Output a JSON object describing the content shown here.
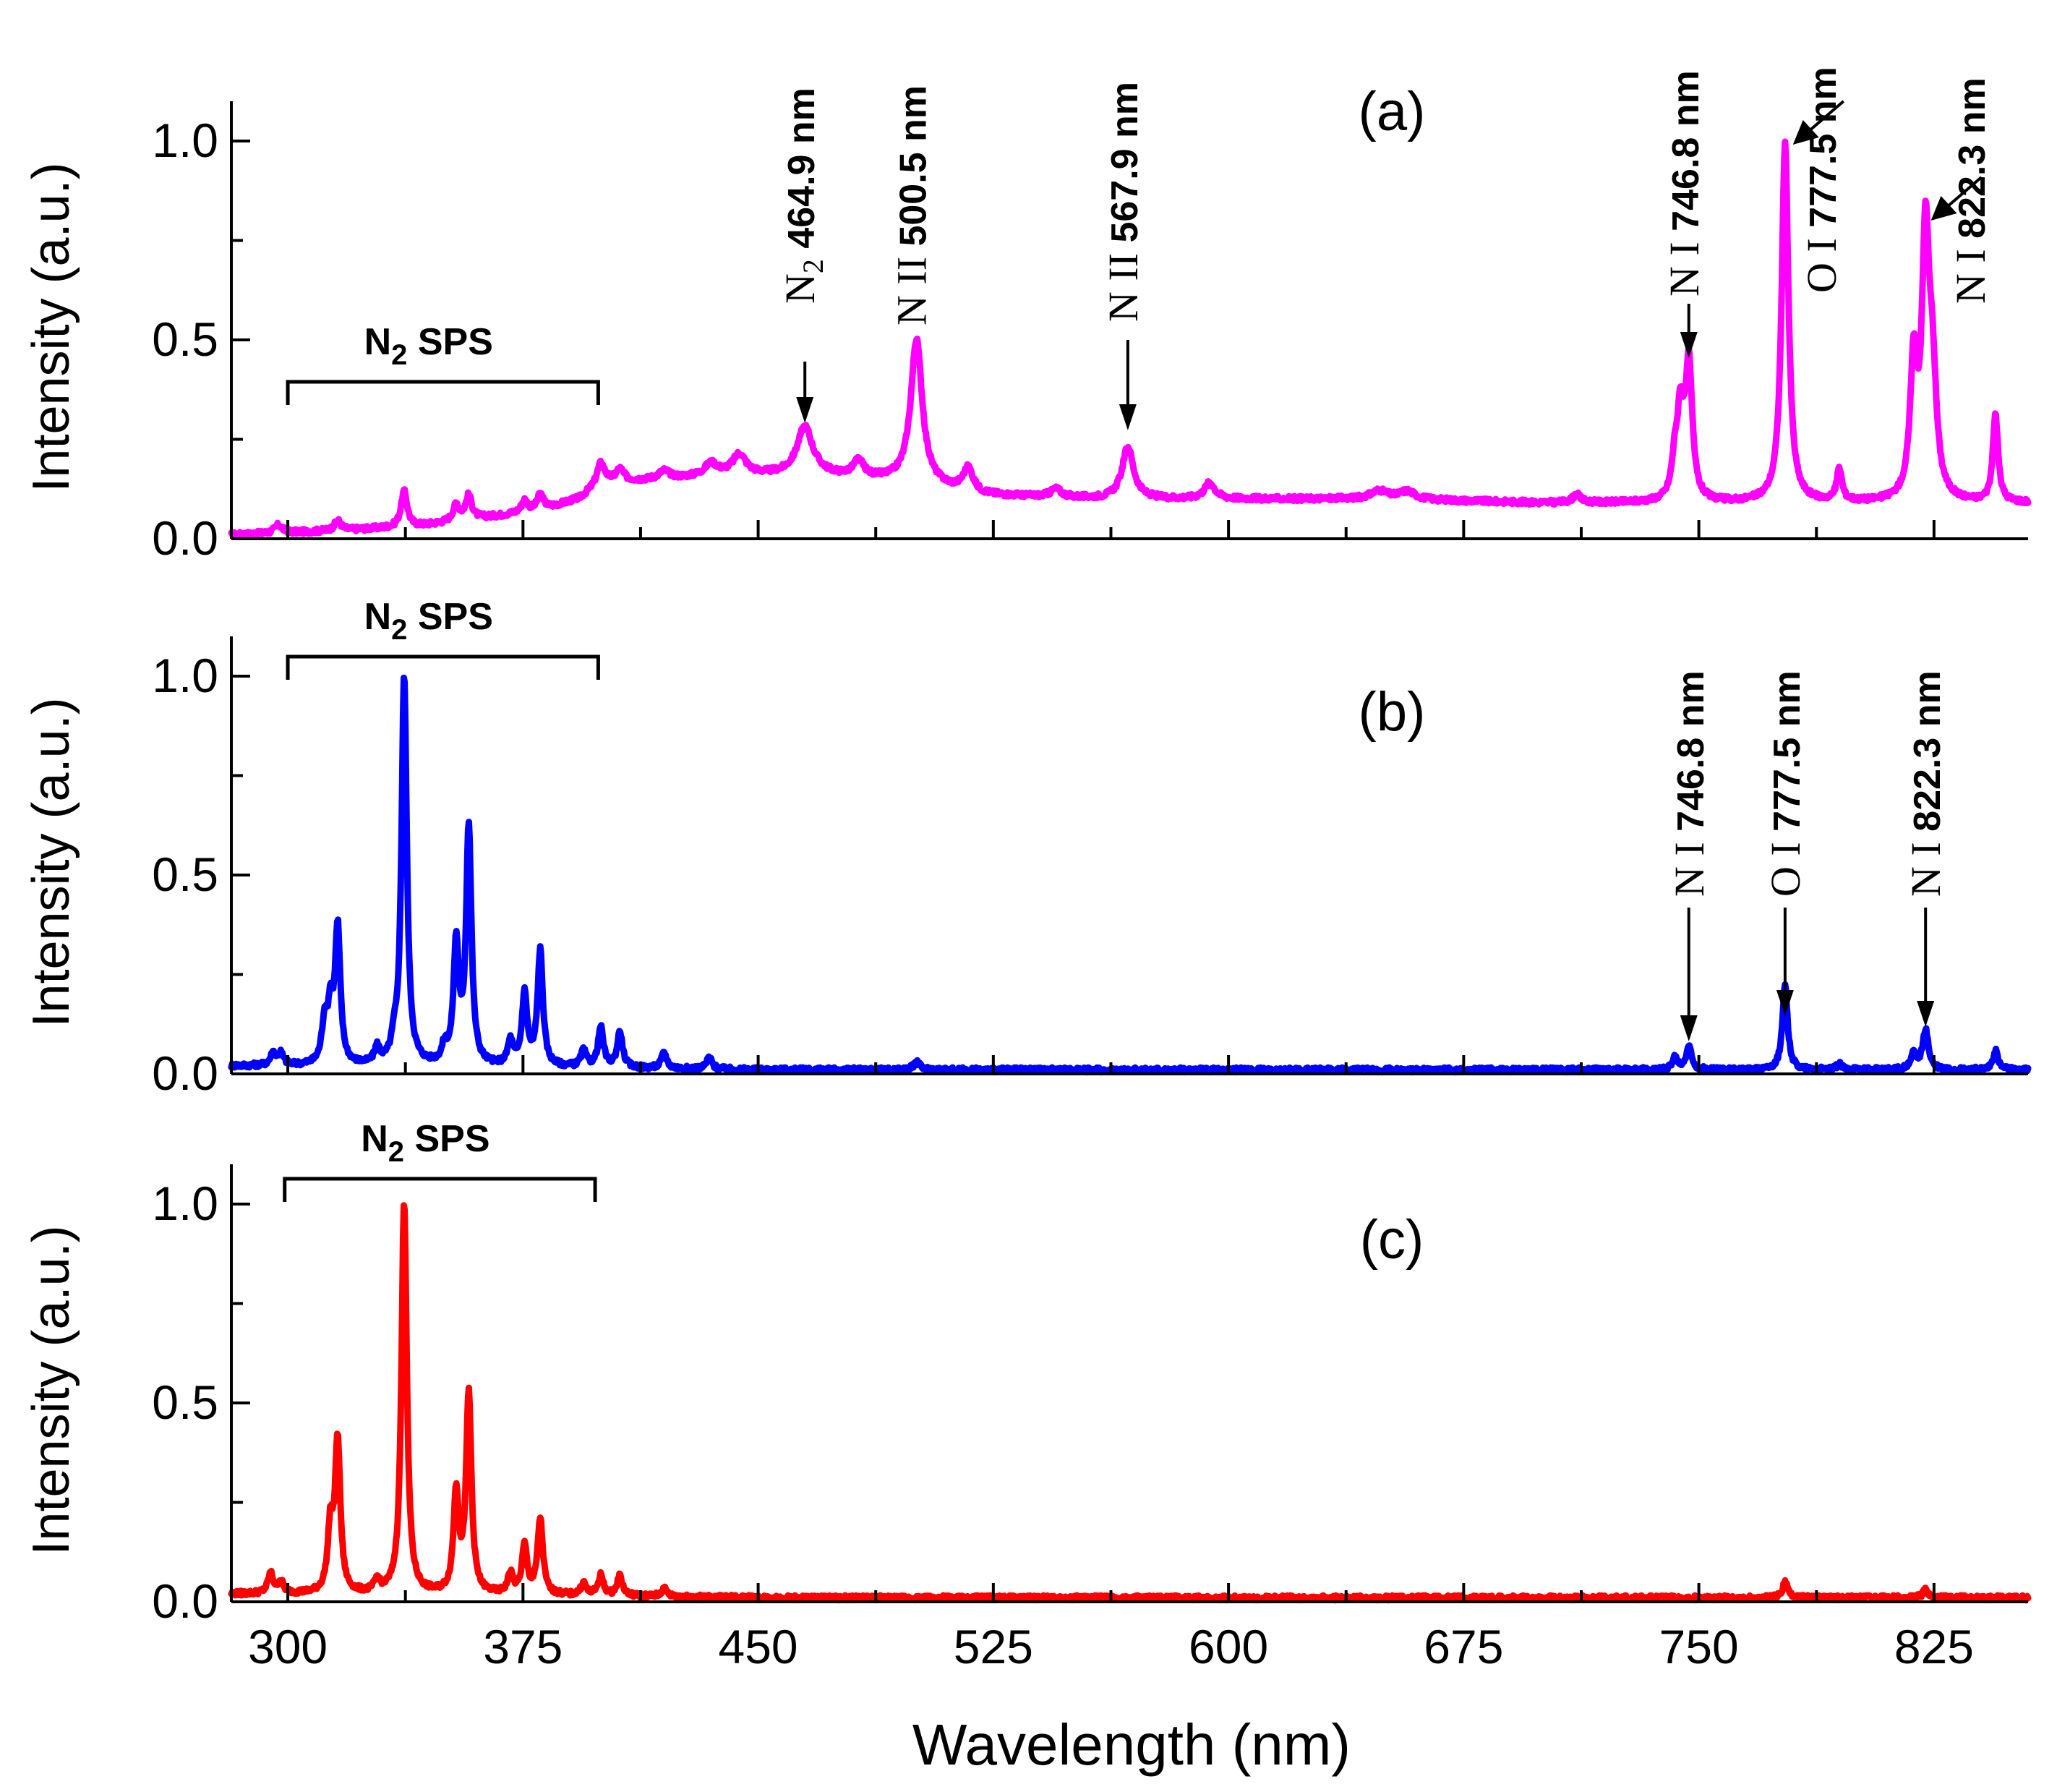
{
  "chart_data": [
    {
      "type": "line",
      "panel_label": "(a)",
      "color": "#ff00ff",
      "xlabel": "Wavelength (nm)",
      "ylabel": "Intensity (a.u.)",
      "xlim": [
        282,
        855
      ],
      "ylim": [
        0.0,
        1.1
      ],
      "xticks": [
        300,
        375,
        450,
        525,
        600,
        675,
        750,
        825
      ],
      "yticks": [
        0.0,
        0.5,
        1.0
      ],
      "ytick_labels": [
        "0.0",
        "0.5",
        "1.0"
      ],
      "baseline": [
        [
          282,
          0.01
        ],
        [
          300,
          0.015
        ],
        [
          340,
          0.03
        ],
        [
          380,
          0.07
        ],
        [
          393,
          0.1
        ],
        [
          400,
          0.14
        ],
        [
          440,
          0.16
        ],
        [
          470,
          0.16
        ],
        [
          500,
          0.14
        ],
        [
          520,
          0.11
        ],
        [
          560,
          0.1
        ],
        [
          600,
          0.1
        ],
        [
          650,
          0.1
        ],
        [
          700,
          0.09
        ],
        [
          740,
          0.09
        ],
        [
          760,
          0.09
        ],
        [
          800,
          0.09
        ],
        [
          855,
          0.09
        ]
      ],
      "peaks": [
        {
          "x": 297,
          "h": 0.02,
          "w": 1.5
        },
        {
          "x": 315.9,
          "h": 0.025,
          "w": 1.2
        },
        {
          "x": 337.1,
          "h": 0.09,
          "w": 1.2
        },
        {
          "x": 353.7,
          "h": 0.04,
          "w": 1.2
        },
        {
          "x": 357.7,
          "h": 0.06,
          "w": 1.2
        },
        {
          "x": 375.5,
          "h": 0.03,
          "w": 1.2
        },
        {
          "x": 380.5,
          "h": 0.04,
          "w": 1.2
        },
        {
          "x": 399.8,
          "h": 0.05,
          "w": 1.5
        },
        {
          "x": 405.9,
          "h": 0.03,
          "w": 1.5
        },
        {
          "x": 420,
          "h": 0.02,
          "w": 2
        },
        {
          "x": 435,
          "h": 0.03,
          "w": 2.5
        },
        {
          "x": 444,
          "h": 0.05,
          "w": 2.5
        },
        {
          "x": 464.9,
          "h": 0.12,
          "w": 3
        },
        {
          "x": 482,
          "h": 0.04,
          "w": 2
        },
        {
          "x": 500.5,
          "h": 0.36,
          "w": 2.2
        },
        {
          "x": 517,
          "h": 0.06,
          "w": 2
        },
        {
          "x": 545,
          "h": 0.02,
          "w": 2
        },
        {
          "x": 567.9,
          "h": 0.13,
          "w": 2.2
        },
        {
          "x": 594,
          "h": 0.04,
          "w": 2
        },
        {
          "x": 648,
          "h": 0.02,
          "w": 3
        },
        {
          "x": 657,
          "h": 0.02,
          "w": 3
        },
        {
          "x": 711,
          "h": 0.02,
          "w": 1.5
        },
        {
          "x": 742.4,
          "h": 0.09,
          "w": 1.2
        },
        {
          "x": 744.2,
          "h": 0.2,
          "w": 1.2
        },
        {
          "x": 746.8,
          "h": 0.34,
          "w": 1.3
        },
        {
          "x": 777.5,
          "h": 0.9,
          "w": 1.3
        },
        {
          "x": 794.8,
          "h": 0.08,
          "w": 1.0
        },
        {
          "x": 818.5,
          "h": 0.33,
          "w": 1.3
        },
        {
          "x": 822.3,
          "h": 0.64,
          "w": 1.4
        },
        {
          "x": 824.5,
          "h": 0.27,
          "w": 1.5
        },
        {
          "x": 844.6,
          "h": 0.22,
          "w": 1.0
        }
      ],
      "bracket": {
        "x1": 300,
        "x2": 399,
        "label": "N",
        "sub": "2",
        "tail": " SPS"
      },
      "annotations": [
        {
          "species": "N",
          "sub": "2",
          "wavelength": "464.9 nm",
          "x": 464.9
        },
        {
          "species": "N II",
          "sub": "",
          "wavelength": "500.5 nm",
          "x": 500.5
        },
        {
          "species": "N II",
          "sub": "",
          "wavelength": "567.9 nm",
          "x": 567.9
        },
        {
          "species": "N I",
          "sub": "",
          "wavelength": "746.8 nm",
          "x": 746.8
        },
        {
          "species": "O I",
          "sub": "",
          "wavelength": "777.5 nm",
          "x": 777.5
        },
        {
          "species": "N I",
          "sub": "",
          "wavelength": "822.3 nm",
          "x": 822.3
        }
      ]
    },
    {
      "type": "line",
      "panel_label": "(b)",
      "color": "#0000ff",
      "xlabel": "Wavelength (nm)",
      "ylabel": "Intensity (a.u.)",
      "xlim": [
        282,
        855
      ],
      "ylim": [
        0.0,
        1.1
      ],
      "xticks": [
        300,
        375,
        450,
        525,
        600,
        675,
        750,
        825
      ],
      "yticks": [
        0.0,
        0.5,
        1.0
      ],
      "ytick_labels": [
        "0.0",
        "0.5",
        "1.0"
      ],
      "baseline": [
        [
          282,
          0.02
        ],
        [
          300,
          0.02
        ],
        [
          400,
          0.015
        ],
        [
          450,
          0.01
        ],
        [
          855,
          0.01
        ]
      ],
      "peaks": [
        {
          "x": 295.3,
          "h": 0.03,
          "w": 1.0
        },
        {
          "x": 297.7,
          "h": 0.03,
          "w": 1.0
        },
        {
          "x": 311.7,
          "h": 0.1,
          "w": 1.0
        },
        {
          "x": 313.6,
          "h": 0.13,
          "w": 1.0
        },
        {
          "x": 315.9,
          "h": 0.34,
          "w": 1.0
        },
        {
          "x": 328.5,
          "h": 0.04,
          "w": 1.0
        },
        {
          "x": 333.9,
          "h": 0.04,
          "w": 1.0
        },
        {
          "x": 337.1,
          "h": 0.98,
          "w": 1.0
        },
        {
          "x": 350,
          "h": 0.04,
          "w": 1.0
        },
        {
          "x": 353.7,
          "h": 0.3,
          "w": 1.0
        },
        {
          "x": 357.7,
          "h": 0.6,
          "w": 1.0
        },
        {
          "x": 371,
          "h": 0.06,
          "w": 1.0
        },
        {
          "x": 375.5,
          "h": 0.18,
          "w": 1.0
        },
        {
          "x": 380.5,
          "h": 0.29,
          "w": 1.0
        },
        {
          "x": 394.3,
          "h": 0.04,
          "w": 1.0
        },
        {
          "x": 399.8,
          "h": 0.1,
          "w": 1.0
        },
        {
          "x": 405.9,
          "h": 0.09,
          "w": 1.0
        },
        {
          "x": 420,
          "h": 0.04,
          "w": 1.0
        },
        {
          "x": 434.4,
          "h": 0.03,
          "w": 1.0
        },
        {
          "x": 500.5,
          "h": 0.02,
          "w": 1.2
        },
        {
          "x": 742.4,
          "h": 0.03,
          "w": 1.0
        },
        {
          "x": 746.8,
          "h": 0.06,
          "w": 1.0
        },
        {
          "x": 777.5,
          "h": 0.21,
          "w": 1.0
        },
        {
          "x": 794.8,
          "h": 0.015,
          "w": 1.0
        },
        {
          "x": 818.5,
          "h": 0.04,
          "w": 1.0
        },
        {
          "x": 822.3,
          "h": 0.1,
          "w": 1.1
        },
        {
          "x": 844.6,
          "h": 0.05,
          "w": 0.9
        }
      ],
      "bracket": {
        "x1": 300,
        "x2": 399,
        "label": "N",
        "sub": "2",
        "tail": " SPS"
      },
      "annotations": [
        {
          "species": "N I",
          "sub": "",
          "wavelength": "746.8 nm",
          "x": 746.8
        },
        {
          "species": "O I",
          "sub": "",
          "wavelength": "777.5 nm",
          "x": 777.5
        },
        {
          "species": "N I",
          "sub": "",
          "wavelength": "822.3 nm",
          "x": 822.3
        }
      ]
    },
    {
      "type": "line",
      "panel_label": "(c)",
      "color": "#ff0000",
      "xlabel": "Wavelength (nm)",
      "ylabel": "Intensity (a.u.)",
      "xlim": [
        282,
        855
      ],
      "ylim": [
        0.0,
        1.1
      ],
      "xticks": [
        300,
        375,
        450,
        525,
        600,
        675,
        750,
        825
      ],
      "xtick_labels": [
        "300",
        "375",
        "450",
        "525",
        "600",
        "675",
        "750",
        "825"
      ],
      "yticks": [
        0.0,
        0.5,
        1.0
      ],
      "ytick_labels": [
        "0.0",
        "0.5",
        "1.0"
      ],
      "baseline": [
        [
          282,
          0.02
        ],
        [
          300,
          0.02
        ],
        [
          400,
          0.015
        ],
        [
          450,
          0.01
        ],
        [
          855,
          0.01
        ]
      ],
      "peaks": [
        {
          "x": 294.5,
          "h": 0.05,
          "w": 1.0
        },
        {
          "x": 297.7,
          "h": 0.03,
          "w": 1.0
        },
        {
          "x": 313.6,
          "h": 0.16,
          "w": 1.0
        },
        {
          "x": 315.9,
          "h": 0.38,
          "w": 1.0
        },
        {
          "x": 328.5,
          "h": 0.03,
          "w": 1.0
        },
        {
          "x": 337.1,
          "h": 0.99,
          "w": 1.0
        },
        {
          "x": 353.7,
          "h": 0.25,
          "w": 1.0
        },
        {
          "x": 357.7,
          "h": 0.5,
          "w": 1.0
        },
        {
          "x": 371,
          "h": 0.05,
          "w": 1.0
        },
        {
          "x": 375.5,
          "h": 0.12,
          "w": 1.0
        },
        {
          "x": 380.5,
          "h": 0.19,
          "w": 1.0
        },
        {
          "x": 394.3,
          "h": 0.03,
          "w": 1.0
        },
        {
          "x": 399.8,
          "h": 0.05,
          "w": 1.0
        },
        {
          "x": 405.9,
          "h": 0.05,
          "w": 1.0
        },
        {
          "x": 420,
          "h": 0.02,
          "w": 1.0
        },
        {
          "x": 777.5,
          "h": 0.04,
          "w": 1.0
        },
        {
          "x": 822.3,
          "h": 0.02,
          "w": 1.0
        }
      ],
      "bracket": {
        "x1": 299,
        "x2": 398,
        "label": "N",
        "sub": "2",
        "tail": " SPS"
      },
      "annotations": []
    }
  ],
  "x_axis_title": "Wavelength (nm)"
}
